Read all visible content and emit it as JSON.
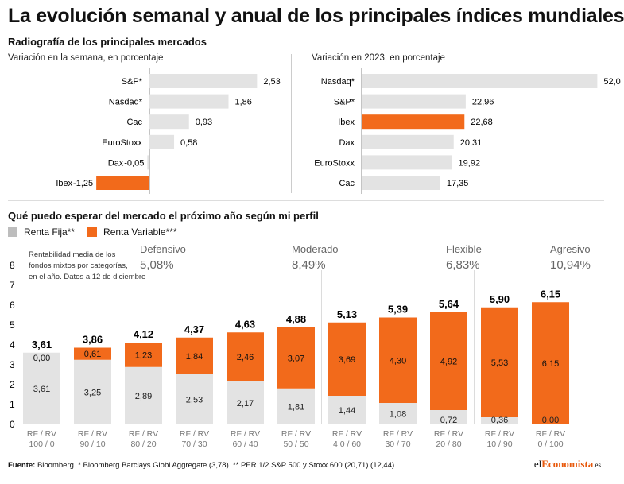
{
  "title": "La evolución semanal y anual de los principales índices mundiales",
  "subtitle": "Radiografía de los principales mercados",
  "colors": {
    "orange": "#f26a1b",
    "gray": "#e3e3e3",
    "dark_gray": "#bdbdbd"
  },
  "chart_data": [
    {
      "type": "bar",
      "orientation": "horizontal",
      "title": "Variación en la semana, en porcentaje",
      "categories": [
        "S&P*",
        "Nasdaq*",
        "Cac",
        "EuroStoxx",
        "Dax",
        "Ibex"
      ],
      "values": [
        2.53,
        1.86,
        0.93,
        0.58,
        -0.05,
        -1.25
      ],
      "labels": [
        "2,53",
        "1,86",
        "0,93",
        "0,58",
        "-0,05",
        "-1,25"
      ],
      "highlight": "Ibex"
    },
    {
      "type": "bar",
      "orientation": "horizontal",
      "title": "Variación en 2023, en porcentaje",
      "categories": [
        "Nasdaq*",
        "S&P*",
        "Ibex",
        "Dax",
        "EuroStoxx",
        "Cac"
      ],
      "values": [
        52.0,
        22.96,
        22.68,
        20.31,
        19.92,
        17.35
      ],
      "labels": [
        "52,0",
        "22,96",
        "22,68",
        "20,31",
        "19,92",
        "17,35"
      ],
      "highlight": "Ibex"
    },
    {
      "type": "bar",
      "stacked": true,
      "title": "Qué puedo esperar del mercado el próximo año según mi perfil",
      "note": [
        "Rentabilidad media de los",
        "fondos mixtos por categorías,",
        "en el año. Datos a 12 de diciembre"
      ],
      "categories": [
        "RF / RV|100 / 0",
        "RF / RV|90 / 10",
        "RF / RV|80 / 20",
        "RF / RV|70 / 30",
        "RF / RV|60 / 40",
        "RF / RV|50 / 50",
        "RF / RV|4 0 / 60",
        "RF / RV|30 / 70",
        "RF / RV|20 / 80",
        "RF / RV|10 / 90",
        "RF / RV|0 / 100"
      ],
      "series": [
        {
          "name": "Renta Fija**",
          "values": [
            3.61,
            3.25,
            2.89,
            2.53,
            2.17,
            1.81,
            1.44,
            1.08,
            0.72,
            0.36,
            0.0
          ],
          "labels": [
            "3,61",
            "3,25",
            "2,89",
            "2,53",
            "2,17",
            "1,81",
            "1,44",
            "1,08",
            "0,72",
            "0,36",
            "0,00"
          ]
        },
        {
          "name": "Renta Variable***",
          "values": [
            0.0,
            0.61,
            1.23,
            1.84,
            2.46,
            3.07,
            3.69,
            4.3,
            4.92,
            5.53,
            6.15
          ],
          "labels": [
            "0,00",
            "0,61",
            "1,23",
            "1,84",
            "2,46",
            "3,07",
            "3,69",
            "4,30",
            "4,92",
            "5,53",
            "6,15"
          ]
        }
      ],
      "totals": [
        "3,61",
        "3,86",
        "4,12",
        "4,37",
        "4,63",
        "4,88",
        "5,13",
        "5,39",
        "5,64",
        "5,90",
        "6,15"
      ],
      "ylim": [
        0,
        8
      ],
      "yticks": [
        "0",
        "1",
        "2",
        "3",
        "4",
        "5",
        "6",
        "7",
        "8"
      ],
      "profiles": [
        {
          "name": "Defensivo",
          "value": "5,08%",
          "from": 0,
          "to": 3
        },
        {
          "name": "Moderado",
          "value": "8,49%",
          "from": 3,
          "to": 6
        },
        {
          "name": "Flexible",
          "value": "6,83%",
          "from": 6,
          "to": 9
        },
        {
          "name": "Agresivo",
          "value": "10,94%",
          "from": 9,
          "to": 11
        }
      ]
    }
  ],
  "legend": {
    "fixed": "Renta Fija**",
    "variable": "Renta Variable***"
  },
  "footer": {
    "source_label": "Fuente:",
    "source_text": " Bloomberg. * Bloomberg Barclays Globl Aggregate (3,78). ** PER 1/2 S&P 500 y Stoxx 600 (20,71) (12,44)."
  },
  "brand": {
    "prefix": "el",
    "highlight": "Economista",
    "suffix": ".es"
  }
}
